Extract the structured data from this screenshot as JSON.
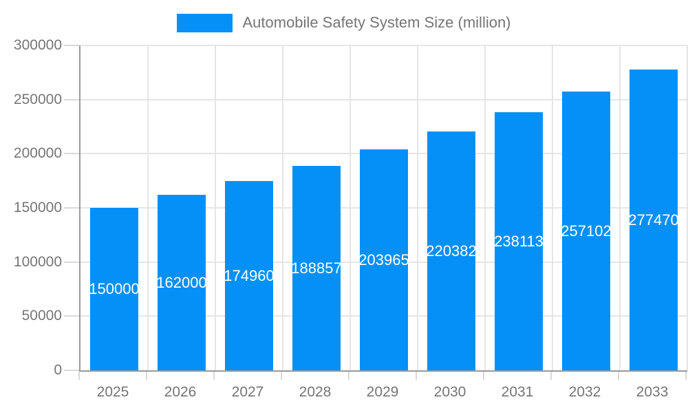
{
  "legend": {
    "label": "Automobile Safety System Size (million)"
  },
  "chart_data": {
    "type": "bar",
    "title": "",
    "series_name": "Automobile Safety System Size (million)",
    "categories": [
      "2025",
      "2026",
      "2027",
      "2028",
      "2029",
      "2030",
      "2031",
      "2032",
      "2033"
    ],
    "values": [
      150000,
      162000,
      174960,
      188857,
      203965,
      220382,
      238113,
      257102,
      277470
    ],
    "value_labels": [
      "150000",
      "162000",
      "174960",
      "188857",
      "203965",
      "220382",
      "238113",
      "257102",
      "277470"
    ],
    "xlabel": "",
    "ylabel": "",
    "ylim": [
      0,
      300000
    ],
    "ytick_step": 50000,
    "ytick_labels": [
      "0",
      "50000",
      "100000",
      "150000",
      "200000",
      "250000",
      "300000"
    ],
    "grid": true,
    "legend_position": "top-center",
    "colors": {
      "bar": "#0590f8",
      "bar_value_text": "#ffffff",
      "axis_line": "#9a9a9a",
      "gridline": "#e5e5e5",
      "tick": "#d9d9d9",
      "tick_label_text": "#757575",
      "legend_text": "#757575"
    }
  }
}
